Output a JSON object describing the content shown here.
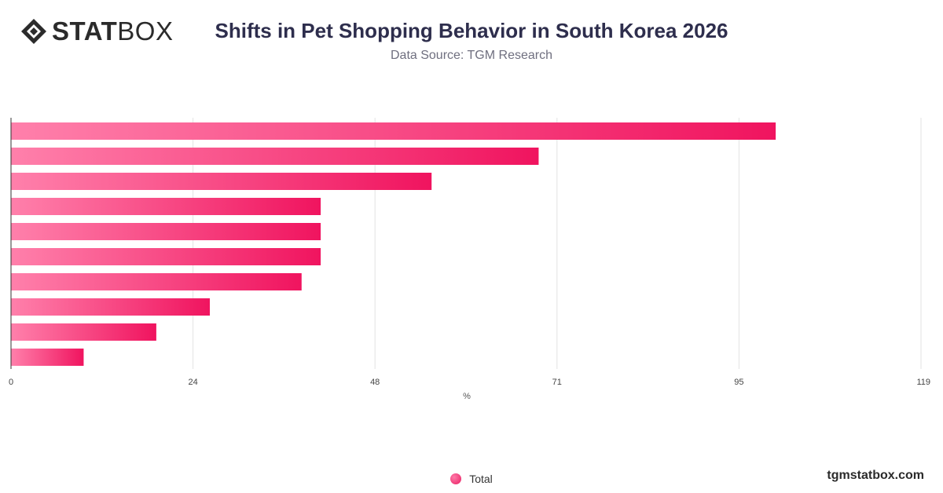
{
  "brand": {
    "logo_bold": "STAT",
    "logo_light": "BOX"
  },
  "header": {
    "title": "Shifts in Pet Shopping Behavior in South Korea 2026",
    "subtitle": "Data Source: TGM Research"
  },
  "footer": {
    "site": "tgmstatbox.com"
  },
  "colors": {
    "bar_start": "#ff80ab",
    "bar_end": "#f0145f",
    "grid": "#e3e3e3",
    "axis": "#333333"
  },
  "chart_data": {
    "type": "bar",
    "orientation": "horizontal",
    "categories": [
      "",
      "",
      "",
      "",
      "",
      "",
      "",
      "",
      "",
      ""
    ],
    "series": [
      {
        "name": "Total",
        "values": [
          100,
          69,
          55,
          40.5,
          40.5,
          40.5,
          38,
          26,
          19,
          9.5
        ]
      }
    ],
    "xlabel": "%",
    "ylabel": "",
    "xlim": [
      0,
      119
    ],
    "xticks": [
      "0",
      "24",
      "48",
      "71",
      "95",
      "119"
    ],
    "xtick_values": [
      0,
      23.8,
      47.6,
      71.4,
      95.2,
      119
    ],
    "grid": true,
    "legend": {
      "position": "bottom",
      "entries": [
        "Total"
      ]
    }
  }
}
